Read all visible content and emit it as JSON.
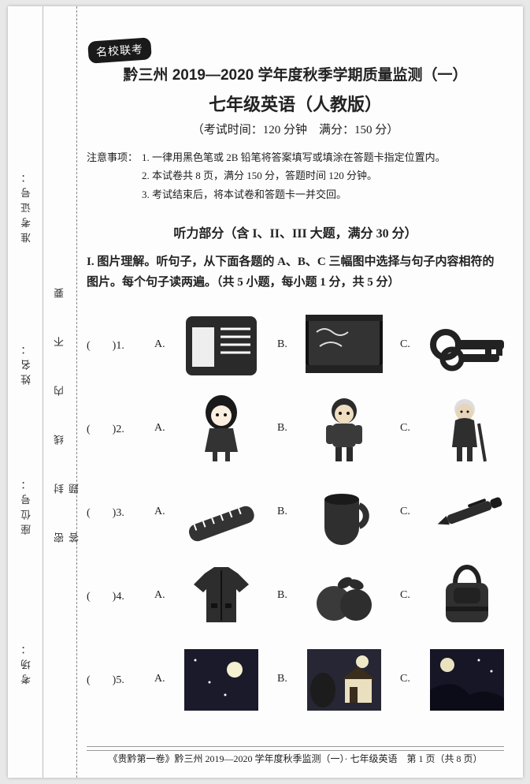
{
  "stamp": "名校联考",
  "title1": "黔三州 2019—2020 学年度秋季学期质量监测（一）",
  "title2": "七年级英语（人教版）",
  "subtitle": "（考试时间：120 分钟　满分：150 分）",
  "notes_label": "注意事项：",
  "notes": [
    "1. 一律用黑色笔或 2B 铅笔将答案填写或填涂在答题卡指定位置内。",
    "2. 本试卷共 8 页，满分 150 分，答题时间 120 分钟。",
    "3. 考试结束后，将本试卷和答题卡一并交回。"
  ],
  "section_hdr": "听力部分（含 I、II、III 大题，满分 30 分）",
  "part_hdr": "I. 图片理解。听句子，从下面各题的 A、B、C 三幅图中选择与句子内容相符的图片。每个句子读两遍。（共 5 小题，每小题 1 分，共 5 分）",
  "binding": {
    "left_labels": [
      "考场：",
      "座位号：",
      "姓名：",
      "准考证号："
    ],
    "sealing_text": "密　封　线　内　不　要　答　题"
  },
  "questions": [
    {
      "num": "(　　)1.",
      "opts": [
        "A.",
        "B.",
        "C."
      ],
      "icons": [
        "folder",
        "chalkboard",
        "keys"
      ]
    },
    {
      "num": "(　　)2.",
      "opts": [
        "A.",
        "B.",
        "C."
      ],
      "icons": [
        "girl",
        "boy",
        "grandpa"
      ]
    },
    {
      "num": "(　　)3.",
      "opts": [
        "A.",
        "B.",
        "C."
      ],
      "icons": [
        "ruler",
        "cup",
        "pen"
      ]
    },
    {
      "num": "(　　)4.",
      "opts": [
        "A.",
        "B.",
        "C."
      ],
      "icons": [
        "jacket",
        "oranges",
        "bag"
      ]
    },
    {
      "num": "(　　)5.",
      "opts": [
        "A.",
        "B.",
        "C."
      ],
      "icons": [
        "night1",
        "house",
        "night2"
      ]
    }
  ],
  "footer": "《贵黔第一卷》黔三州 2019—2020 学年度秋季监测（一）· 七年级英语　第 1 页（共 8 页）"
}
